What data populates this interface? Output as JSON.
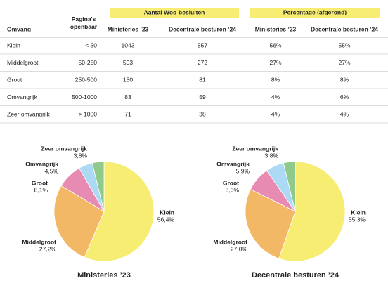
{
  "table": {
    "groups": [
      "Aantal Woo-besluiten",
      "Percentage (afgerond)"
    ],
    "header": [
      "Omvang",
      "Pagina's openbaar",
      "Ministeries ’23",
      "Decentrale besturen ’24",
      "Ministeries ’23",
      "Decentrale besturen ’24"
    ],
    "rows": [
      [
        "Klein",
        "< 50",
        "1043",
        "557",
        "56%",
        "55%"
      ],
      [
        "Middelgroot",
        "50-250",
        "503",
        "272",
        "27%",
        "27%"
      ],
      [
        "Groot",
        "250-500",
        "150",
        "81",
        "8%",
        "8%"
      ],
      [
        "Omvangrijk",
        "500-1000",
        "83",
        "59",
        "4%",
        "6%"
      ],
      [
        "Zeer omvangrijk",
        "> 1000",
        "71",
        "38",
        "4%",
        "4%"
      ]
    ]
  },
  "chart_data": [
    {
      "type": "pie",
      "title": "Ministeries ’23",
      "categories": [
        "Klein",
        "Middelgroot",
        "Groot",
        "Omvangrijk",
        "Zeer omvangrijk"
      ],
      "values": [
        56.4,
        27.2,
        8.1,
        4.5,
        3.8
      ],
      "value_labels": [
        "56,4%",
        "27,2%",
        "8,1%",
        "4,5%",
        "3,8%"
      ],
      "colors": [
        "#f6ed72",
        "#f2b865",
        "#e78bb2",
        "#acd9f3",
        "#8fc98b"
      ]
    },
    {
      "type": "pie",
      "title": "Decentrale besturen ’24",
      "categories": [
        "Klein",
        "Middelgroot",
        "Groot",
        "Omvangrijk",
        "Zeer omvangrijk"
      ],
      "values": [
        55.3,
        27.0,
        8.0,
        5.9,
        3.8
      ],
      "value_labels": [
        "55,3%",
        "27,0%",
        "8,0%",
        "5,9%",
        "3,8%"
      ],
      "colors": [
        "#f6ed72",
        "#f2b865",
        "#e78bb2",
        "#acd9f3",
        "#8fc98b"
      ]
    }
  ]
}
